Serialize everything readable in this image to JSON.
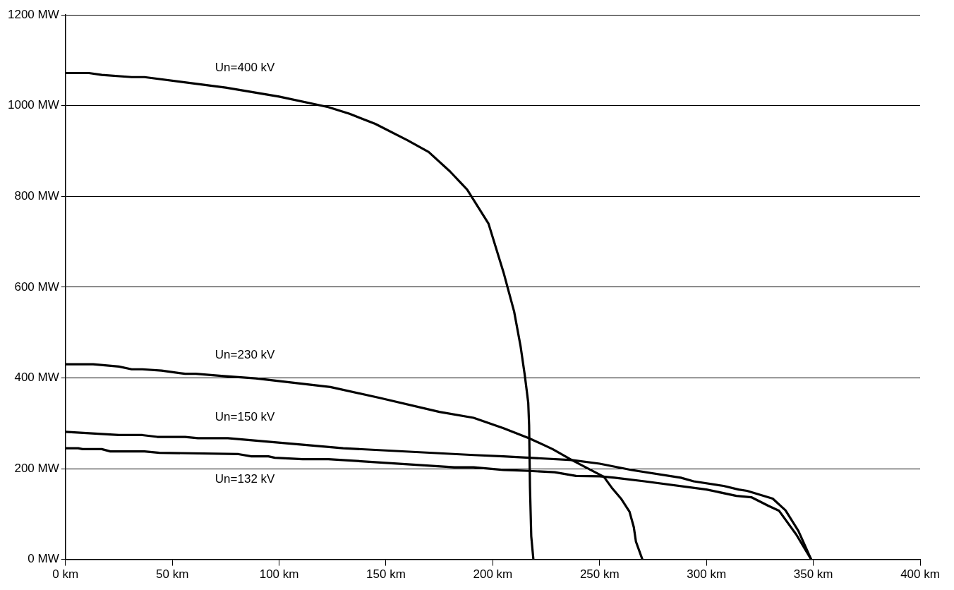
{
  "chart_data": {
    "type": "line",
    "marker": "none",
    "line_style": "solid",
    "grid": "y",
    "legend": false,
    "xlim": [
      0,
      400
    ],
    "xticks": [
      {
        "value": 0,
        "label": "0 km"
      },
      {
        "value": 50,
        "label": "50 km"
      },
      {
        "value": 100,
        "label": "100 km"
      },
      {
        "value": 150,
        "label": "150 km"
      },
      {
        "value": 200,
        "label": "200 km"
      },
      {
        "value": 250,
        "label": "250 km"
      },
      {
        "value": 300,
        "label": "300 km"
      },
      {
        "value": 350,
        "label": "350 km"
      },
      {
        "value": 400,
        "label": "400 km"
      }
    ],
    "ylim": [
      0,
      1200
    ],
    "yticks": [
      {
        "value": 0,
        "label": "0 MW"
      },
      {
        "value": 200,
        "label": "200 MW"
      },
      {
        "value": 400,
        "label": "400 MW"
      },
      {
        "value": 600,
        "label": "600 MW"
      },
      {
        "value": 800,
        "label": "800 MW"
      },
      {
        "value": 1000,
        "label": "1000 MW"
      },
      {
        "value": 1200,
        "label": "1200 MW"
      }
    ],
    "series": [
      {
        "name": "Un=400 kV",
        "color": "#000000",
        "x": [
          0,
          11,
          17,
          31,
          37,
          75,
          100,
          123,
          133,
          145,
          160,
          170,
          180,
          188,
          198,
          205,
          210,
          213,
          215,
          216.6,
          217,
          217.4,
          218,
          219
        ],
        "values": [
          1072,
          1072,
          1068,
          1063,
          1063,
          1040,
          1020,
          997,
          982,
          960,
          924,
          898,
          855,
          815,
          740,
          633,
          546,
          470,
          405,
          345,
          296,
          160,
          51,
          0
        ]
      },
      {
        "name": "Un=230 kV",
        "color": "#000000",
        "x": [
          0,
          13,
          25,
          31,
          36,
          45,
          56,
          61,
          74,
          89,
          124,
          147,
          175,
          191,
          205,
          217,
          228,
          237,
          252,
          256,
          260,
          264,
          266,
          267,
          270
        ],
        "values": [
          430,
          430,
          425,
          419,
          419,
          416,
          409,
          409,
          404,
          399,
          380,
          356,
          325,
          312,
          289,
          267,
          243,
          219,
          182,
          156,
          134,
          105,
          71,
          39,
          0
        ]
      },
      {
        "name": "Un=150 kV",
        "color": "#000000",
        "x": [
          0,
          25,
          36,
          43,
          56,
          62,
          76,
          130,
          191,
          205,
          237,
          250,
          265,
          288,
          294,
          308,
          315,
          319,
          331,
          337,
          343,
          349
        ],
        "values": [
          281,
          274,
          274,
          270,
          270,
          267,
          267,
          245,
          230,
          227,
          219,
          211,
          197,
          180,
          172,
          162,
          154,
          151,
          134,
          108,
          63,
          0
        ]
      },
      {
        "name": "Un=132 kV",
        "color": "#000000",
        "x": [
          0,
          6,
          8,
          17,
          21,
          37,
          44,
          81,
          87,
          95,
          98,
          111,
          123,
          182,
          191,
          205,
          217,
          229,
          239,
          250,
          257,
          271,
          300,
          314,
          321,
          329,
          334,
          342,
          349
        ],
        "values": [
          245,
          245,
          243,
          243,
          238,
          238,
          235,
          232,
          227,
          227,
          224,
          221,
          221,
          203,
          203,
          197,
          195,
          192,
          184,
          183,
          180,
          172,
          154,
          140,
          137,
          118,
          107,
          55,
          0
        ]
      }
    ]
  }
}
